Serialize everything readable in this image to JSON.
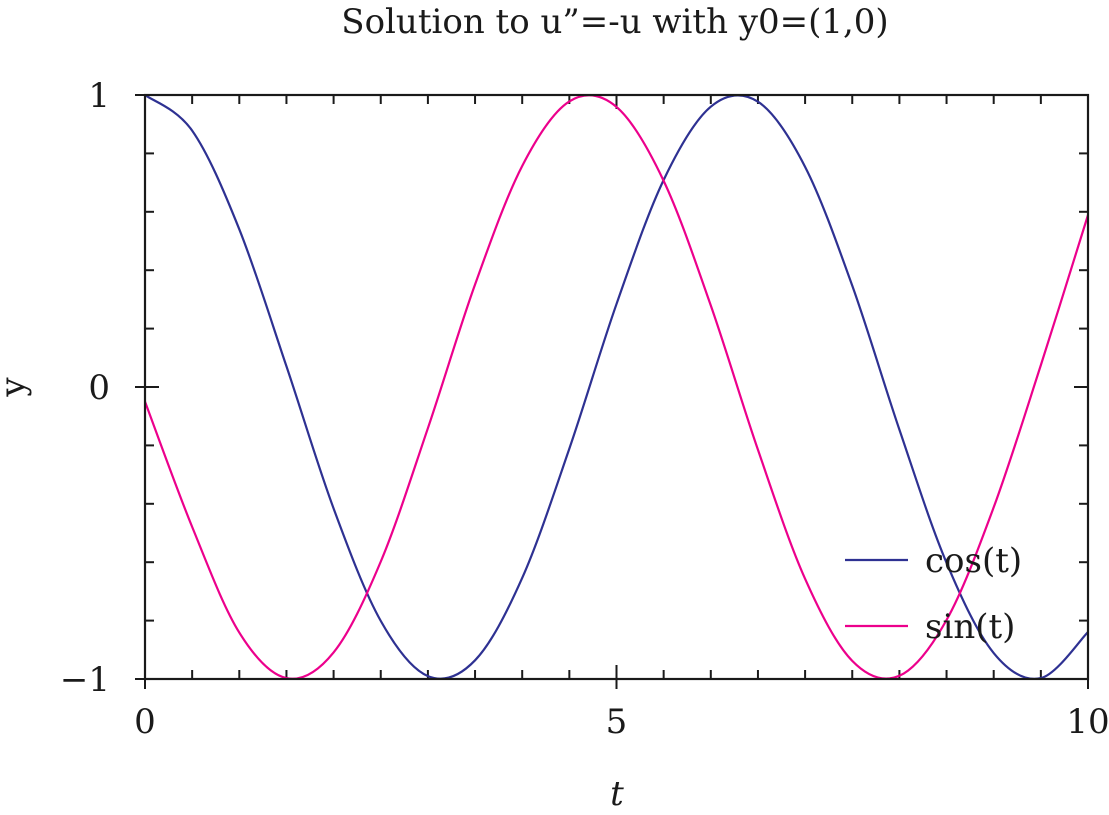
{
  "chart_data": {
    "type": "line",
    "title": "Solution to u”=-u with y0=(1,0)",
    "xlabel": "t",
    "ylabel": "y",
    "xlim": [
      0,
      10
    ],
    "ylim": [
      -1,
      1
    ],
    "x_ticks": [
      0,
      5,
      10
    ],
    "x_tick_labels": [
      "0",
      "5",
      "10"
    ],
    "y_ticks": [
      -1,
      0,
      1
    ],
    "y_tick_labels": [
      "−1",
      "0",
      "1"
    ],
    "grid": false,
    "legend_position": "bottom-right",
    "series": [
      {
        "name": "cos(t)",
        "color": "#2e3192",
        "x": [
          0,
          0.5,
          1,
          1.5,
          2,
          2.5,
          3,
          3.5,
          4,
          4.5,
          5,
          5.5,
          6,
          6.5,
          7,
          7.5,
          8,
          8.5,
          9,
          9.5,
          10
        ],
        "values": [
          1.0,
          0.878,
          0.54,
          0.071,
          -0.416,
          -0.801,
          -0.99,
          -0.936,
          -0.654,
          -0.211,
          0.284,
          0.709,
          0.96,
          0.977,
          0.754,
          0.347,
          -0.146,
          -0.602,
          -0.911,
          -0.997,
          -0.839
        ]
      },
      {
        "name": "sin(t)",
        "color": "#ec008c",
        "x": [
          0,
          0.5,
          1,
          1.5,
          2,
          2.5,
          3,
          3.5,
          4,
          4.5,
          5,
          5.5,
          6,
          6.5,
          7,
          7.5,
          8,
          8.5,
          9,
          9.5,
          10
        ],
        "values": [
          -0.05,
          -0.479,
          -0.841,
          -0.997,
          -0.909,
          -0.598,
          -0.141,
          0.351,
          0.757,
          0.978,
          0.959,
          0.706,
          0.279,
          -0.215,
          -0.657,
          -0.938,
          -0.989,
          -0.798,
          -0.412,
          0.075,
          0.589
        ]
      }
    ]
  }
}
